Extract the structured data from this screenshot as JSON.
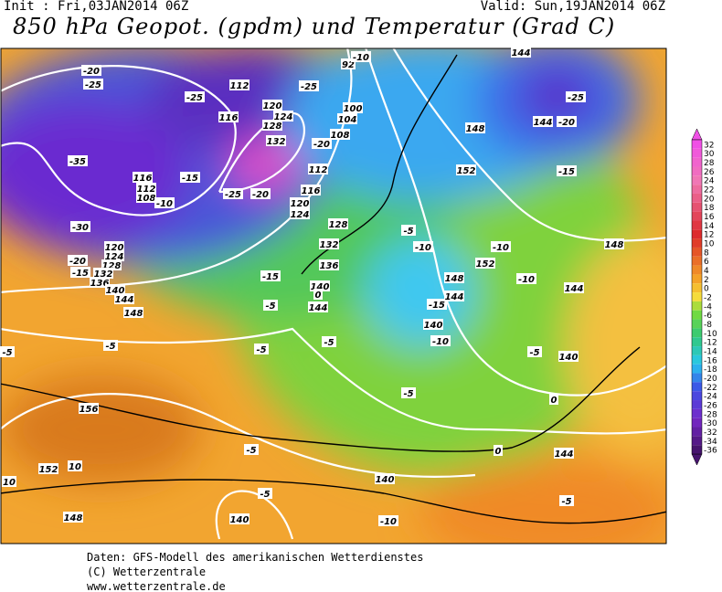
{
  "header": {
    "init": "Init : Fri,03JAN2014 06Z",
    "valid": "Valid: Sun,19JAN2014 06Z"
  },
  "title": "850 hPa Geopot. (gpdm) und Temperatur (Grad C)",
  "colorbar": {
    "values": [
      32,
      30,
      28,
      26,
      24,
      22,
      20,
      18,
      16,
      14,
      12,
      10,
      8,
      6,
      4,
      2,
      0,
      -2,
      -4,
      -6,
      -8,
      -10,
      -12,
      -14,
      -16,
      -18,
      -20,
      -22,
      -24,
      -26,
      -28,
      -30,
      -32,
      -34,
      -36
    ]
  },
  "map": {
    "labels": [
      "-20",
      "-25",
      "-25",
      "112",
      "-25",
      "92",
      "-10",
      "144",
      "-25",
      "144",
      "-20",
      "116",
      "120",
      "124",
      "128",
      "132",
      "100",
      "104",
      "108",
      "-20",
      "-35",
      "112",
      "-15",
      "116",
      "112",
      "108",
      "-10",
      "-25",
      "-20",
      "116",
      "120",
      "124",
      "128",
      "148",
      "152",
      "-15",
      "-30",
      "-5",
      "120",
      "124",
      "128",
      "132",
      "136",
      "140",
      "144",
      "148",
      "132",
      "136",
      "140",
      "144",
      "0",
      "-10",
      "-10",
      "152",
      "148",
      "-10",
      "148",
      "144",
      "-15",
      "-5",
      "-15",
      "144",
      "140",
      "-10",
      "-5",
      "-5",
      "-5",
      "-5",
      "140",
      "156",
      "-5",
      "0",
      "144",
      "-5",
      "152",
      "10",
      "10",
      "140",
      "-5",
      "-5",
      "148",
      "140",
      "-10",
      "-20",
      "-15",
      "0",
      "-5"
    ]
  },
  "footer": {
    "lines": [
      "Daten: GFS-Modell des amerikanischen Wetterdienstes",
      "(C) Wetterzentrale",
      "www.wetterzentrale.de"
    ]
  }
}
